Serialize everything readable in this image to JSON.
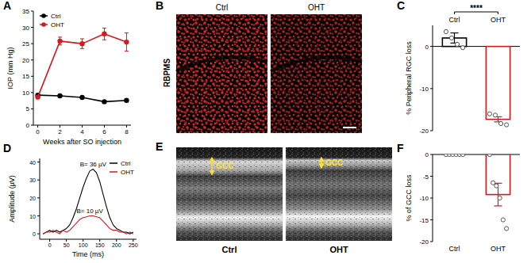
{
  "chart_data": [
    {
      "panel": "A",
      "type": "line",
      "x_label": "Weeks after SO injection",
      "y_label": "IOP (mm Hg)",
      "x": [
        0,
        2,
        4,
        6,
        8
      ],
      "xlim": [
        -0.4,
        8.4
      ],
      "xticks": [
        0,
        2,
        4,
        6,
        8
      ],
      "ylim": [
        0,
        35
      ],
      "yticks": [
        0,
        5,
        10,
        15,
        20,
        25,
        30,
        35
      ],
      "legend": "upper left",
      "series": [
        {
          "name": "Ctrl",
          "color": "#000000",
          "marker": "circle",
          "values": [
            9.2,
            9,
            8.5,
            7.2,
            7.6
          ],
          "errors": [
            0.3,
            0.3,
            0.3,
            0.4,
            0.3
          ]
        },
        {
          "name": "OHT",
          "color": "#d7191c",
          "marker": "circle",
          "values": [
            8.6,
            25.8,
            25,
            28,
            25.5
          ],
          "errors": [
            0.5,
            1.2,
            1.5,
            1.8,
            2.8
          ]
        }
      ]
    },
    {
      "panel": "C",
      "type": "bar",
      "y_label": "% Peripheral RGC loss",
      "categories": [
        "Ctrl",
        "OHT"
      ],
      "values": [
        2,
        -17.3
      ],
      "errors": [
        1.2,
        0.6
      ],
      "points": [
        [
          3.5,
          2,
          0.5,
          -0.3
        ],
        [
          -16,
          -16.3,
          -18.3,
          -18.6
        ]
      ],
      "colors": [
        "#000000",
        "#d7191c"
      ],
      "ylim": [
        -20,
        5
      ],
      "yticks": [
        -20,
        -10,
        0
      ],
      "significance": "****"
    },
    {
      "panel": "D",
      "type": "line",
      "x_label": "Time (ms)",
      "y_label": "Amplitude (µV)",
      "x": [
        -20,
        -10,
        0,
        10,
        20,
        30,
        40,
        50,
        60,
        70,
        80,
        90,
        100,
        110,
        120,
        130,
        140,
        150,
        160,
        170,
        180,
        190,
        200,
        210,
        220,
        230,
        240,
        250
      ],
      "xlim": [
        -30,
        260
      ],
      "xticks": [
        0,
        50,
        100,
        150,
        200,
        250
      ],
      "ylim": [
        -3,
        42
      ],
      "yticks": [
        0,
        10,
        20,
        30,
        40
      ],
      "legend": "upper right",
      "series": [
        {
          "name": "Ctrl",
          "color": "#000000",
          "annotation": "B= 36 µV",
          "values": [
            0,
            1,
            2,
            1,
            2,
            1,
            2,
            3,
            5,
            9,
            14,
            20,
            26,
            31,
            35,
            36,
            34,
            29,
            22,
            15,
            9,
            5,
            3,
            2,
            1,
            1,
            0,
            1
          ]
        },
        {
          "name": "OHT",
          "color": "#d7191c",
          "annotation": "B= 10 µV",
          "values": [
            0,
            1,
            1,
            2,
            1,
            0,
            2,
            1,
            2,
            4,
            6,
            8,
            9,
            9.5,
            10,
            10,
            9.5,
            9,
            7,
            5,
            3,
            2,
            2,
            1,
            1,
            0,
            1,
            0
          ]
        }
      ]
    },
    {
      "panel": "F",
      "type": "bar",
      "y_label": "% of GCC loss",
      "categories": [
        "Ctrl",
        "OHT"
      ],
      "values": [
        0,
        -9.2
      ],
      "errors": [
        0,
        2.6
      ],
      "points": [
        [
          0,
          0,
          0,
          0,
          0,
          0
        ],
        [
          0,
          -6.5,
          -7.2,
          -10,
          -15,
          -17
        ]
      ],
      "colors": [
        "#000000",
        "#d7191c"
      ],
      "ylim": [
        -20,
        0
      ],
      "yticks": [
        0,
        -5,
        -10,
        -15,
        -20
      ]
    }
  ],
  "images": [
    {
      "panel": "B",
      "stain": "RBPMS",
      "labels": [
        "Ctrl",
        "OHT"
      ]
    },
    {
      "panel": "E",
      "annotation": "GCC",
      "labels": [
        "Ctrl",
        "OHT"
      ]
    }
  ]
}
